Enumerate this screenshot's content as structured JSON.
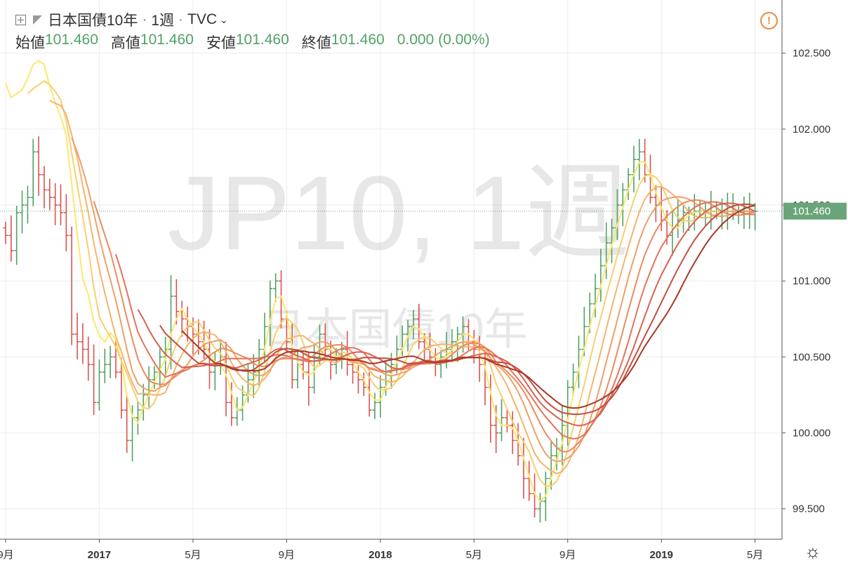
{
  "header": {
    "symbol_name": "日本国債10年",
    "interval": "1週",
    "exchange": "TVC",
    "ohlc": {
      "open_label": "始値",
      "open_value": "101.460",
      "high_label": "高値",
      "high_value": "101.460",
      "low_label": "安値",
      "low_value": "101.460",
      "close_label": "終値",
      "close_value": "101.460",
      "change": "0.000 (0.00%)"
    }
  },
  "watermark": {
    "line1": "JP10, 1週",
    "line2": "日本国債10年"
  },
  "icons": {
    "add": "plus-box-icon",
    "flag": "flag-icon",
    "alert": "alert-icon",
    "settings": "gear-icon"
  },
  "colors": {
    "up": "#53a166",
    "down": "#d9534f",
    "price_tag": "#6aa57a",
    "grid": "#ececec"
  },
  "chart_data": {
    "type": "line",
    "ylim": [
      99.3,
      102.85
    ],
    "y_ticks": [
      "99.500",
      "100.000",
      "100.500",
      "101.000",
      "101.500",
      "102.000",
      "102.500"
    ],
    "y_tick_values": [
      99.5,
      100.0,
      100.5,
      101.0,
      101.5,
      102.0,
      102.5
    ],
    "x_ticks": [
      {
        "label": "9月",
        "week": 0
      },
      {
        "label": "2017",
        "week": 17
      },
      {
        "label": "5月",
        "week": 34
      },
      {
        "label": "9月",
        "week": 51
      },
      {
        "label": "2018",
        "week": 68
      },
      {
        "label": "5月",
        "week": 85
      },
      {
        "label": "9月",
        "week": 102
      },
      {
        "label": "2019",
        "week": 119
      },
      {
        "label": "5月",
        "week": 136
      }
    ],
    "last_price": "101.460",
    "last_price_value": 101.46,
    "bars_weekly_close": [
      101.3,
      101.2,
      101.45,
      101.5,
      101.55,
      101.85,
      101.7,
      101.6,
      101.55,
      101.5,
      101.45,
      101.3,
      100.65,
      100.6,
      100.55,
      100.45,
      100.2,
      100.4,
      100.45,
      100.5,
      100.4,
      100.15,
      99.95,
      100.1,
      100.15,
      100.25,
      100.35,
      100.4,
      100.5,
      100.55,
      100.9,
      100.8,
      100.75,
      100.7,
      100.65,
      100.6,
      100.55,
      100.4,
      100.45,
      100.5,
      100.2,
      100.1,
      100.15,
      100.25,
      100.35,
      100.4,
      100.55,
      100.7,
      100.95,
      101.0,
      100.75,
      100.6,
      100.35,
      100.45,
      100.4,
      100.3,
      100.5,
      100.65,
      100.55,
      100.45,
      100.5,
      100.55,
      100.45,
      100.4,
      100.35,
      100.3,
      100.15,
      100.2,
      100.3,
      100.4,
      100.45,
      100.55,
      100.65,
      100.7,
      100.75,
      100.6,
      100.55,
      100.5,
      100.45,
      100.5,
      100.55,
      100.6,
      100.65,
      100.7,
      100.6,
      100.55,
      100.45,
      100.3,
      100.05,
      100.0,
      100.1,
      100.05,
      99.95,
      99.85,
      99.7,
      99.6,
      99.5,
      99.55,
      99.7,
      99.85,
      99.9,
      100.05,
      100.3,
      100.4,
      100.55,
      100.7,
      100.85,
      100.95,
      101.1,
      101.25,
      101.35,
      101.5,
      101.6,
      101.7,
      101.8,
      101.85,
      101.7,
      101.55,
      101.5,
      101.4,
      101.3,
      101.35,
      101.4,
      101.45,
      101.45,
      101.46,
      101.46,
      101.46,
      101.46,
      101.46,
      101.46,
      101.46,
      101.46,
      101.46,
      101.46,
      101.46,
      101.46
    ],
    "series": [
      {
        "period": 3,
        "color": "#fbe86c",
        "start_week": 0
      },
      {
        "period": 6,
        "color": "#f8cf6e",
        "start_week": 4
      },
      {
        "period": 9,
        "color": "#f4b46c",
        "start_week": 8
      },
      {
        "period": 12,
        "color": "#ef9f66",
        "start_week": 12
      },
      {
        "period": 15,
        "color": "#ea8a60",
        "start_week": 16
      },
      {
        "period": 18,
        "color": "#e4735a",
        "start_week": 20
      },
      {
        "period": 21,
        "color": "#d9614f",
        "start_week": 24
      },
      {
        "period": 24,
        "color": "#c44e3f",
        "start_week": 28
      },
      {
        "period": 27,
        "color": "#a83826",
        "start_week": 32
      }
    ]
  }
}
